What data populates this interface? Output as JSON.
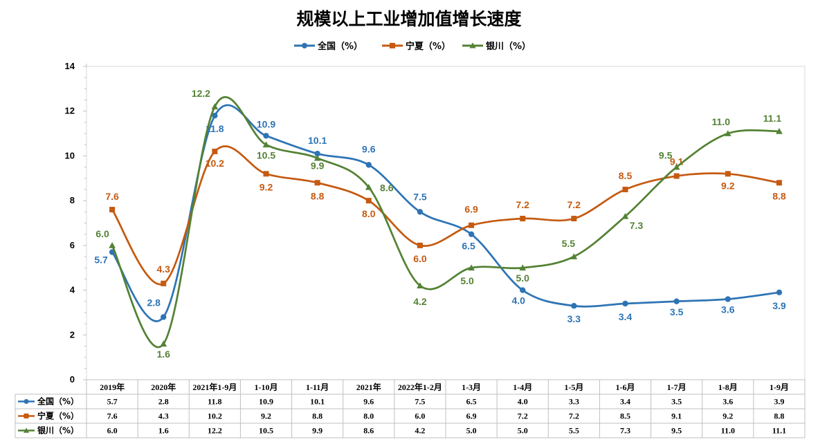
{
  "chart_data": {
    "type": "line",
    "title": "规模以上工业增加值增长速度",
    "categories": [
      "2019年",
      "2020年",
      "2021年1-9月",
      "1-10月",
      "1-11月",
      "2021年",
      "2022年1-2月",
      "1-3月",
      "1-4月",
      "1-5月",
      "1-6月",
      "1-7月",
      "1-8月",
      "1-9月"
    ],
    "ylim": [
      0,
      14
    ],
    "yticks": [
      0,
      2,
      4,
      6,
      8,
      10,
      12,
      14
    ],
    "legend_position": "top",
    "data_table": true,
    "series": [
      {
        "name": "全国（%）",
        "color": "#2e74b5",
        "marker": "circle",
        "values": [
          5.7,
          2.8,
          11.8,
          10.9,
          10.1,
          9.6,
          7.5,
          6.5,
          4.0,
          3.3,
          3.4,
          3.5,
          3.6,
          3.9
        ]
      },
      {
        "name": "宁夏（%）",
        "color": "#c55a11",
        "marker": "square",
        "values": [
          7.6,
          4.3,
          10.2,
          9.2,
          8.8,
          8.0,
          6.0,
          6.9,
          7.2,
          7.2,
          8.5,
          9.1,
          9.2,
          8.8
        ]
      },
      {
        "name": "银川（%）",
        "color": "#548235",
        "marker": "triangle",
        "values": [
          6.0,
          1.6,
          12.2,
          10.5,
          9.9,
          8.6,
          4.2,
          5.0,
          5.0,
          5.5,
          7.3,
          9.5,
          11.0,
          11.1
        ]
      }
    ]
  }
}
